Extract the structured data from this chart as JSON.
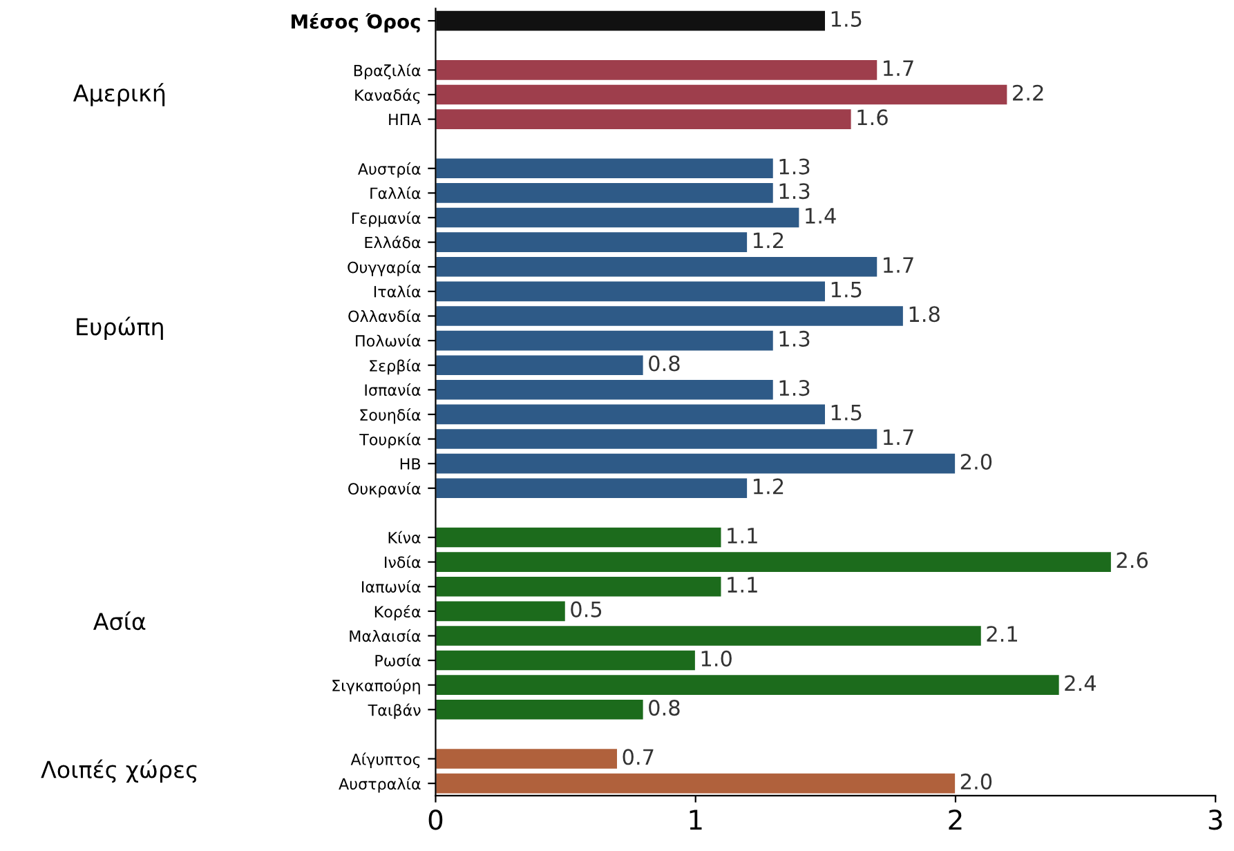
{
  "chart_data": {
    "type": "bar",
    "orientation": "horizontal",
    "categories": [
      "Μέσος Όρος",
      null,
      "Βραζιλία",
      "Καναδάς",
      "ΗΠΑ",
      null,
      "Αυστρία",
      "Γαλλία",
      "Γερμανία",
      "Ελλάδα",
      "Ουγγαρία",
      "Ιταλία",
      "Ολλανδία",
      "Πολωνία",
      "Σερβία",
      "Ισπανία",
      "Σουηδία",
      "Τουρκία",
      "ΗΒ",
      "Ουκρανία",
      null,
      "Κίνα",
      "Ινδία",
      "Ιαπωνία",
      "Κορέα",
      "Μαλαισία",
      "Ρωσία",
      "Σιγκαπούρη",
      "Ταιβάν",
      null,
      "Αίγυπτος",
      "Αυστραλία"
    ],
    "values": [
      1.5,
      null,
      1.7,
      2.2,
      1.6,
      null,
      1.3,
      1.3,
      1.4,
      1.2,
      1.7,
      1.5,
      1.8,
      1.3,
      0.8,
      1.3,
      1.5,
      1.7,
      2.0,
      1.2,
      null,
      1.1,
      2.6,
      1.1,
      0.5,
      2.1,
      1.0,
      2.4,
      0.8,
      null,
      0.7,
      2.0
    ],
    "value_labels": [
      "1.5",
      null,
      "1.7",
      "2.2",
      "1.6",
      null,
      "1.3",
      "1.3",
      "1.4",
      "1.2",
      "1.7",
      "1.5",
      "1.8",
      "1.3",
      "0.8",
      "1.3",
      "1.5",
      "1.7",
      "2.0",
      "1.2",
      null,
      "1.1",
      "2.6",
      "1.1",
      "0.5",
      "2.1",
      "1.0",
      "2.4",
      "0.8",
      null,
      "0.7",
      "2.0"
    ],
    "colors": [
      "#111111",
      null,
      "#9e3e4c",
      "#9e3e4c",
      "#9e3e4c",
      null,
      "#2e5a87",
      "#2e5a87",
      "#2e5a87",
      "#2e5a87",
      "#2e5a87",
      "#2e5a87",
      "#2e5a87",
      "#2e5a87",
      "#2e5a87",
      "#2e5a87",
      "#2e5a87",
      "#2e5a87",
      "#2e5a87",
      "#2e5a87",
      null,
      "#1c6b1c",
      "#1c6b1c",
      "#1c6b1c",
      "#1c6b1c",
      "#1c6b1c",
      "#1c6b1c",
      "#1c6b1c",
      "#1c6b1c",
      null,
      "#b0613c",
      "#b0613c"
    ],
    "xlim": [
      0,
      3
    ],
    "xticks": [
      0,
      1,
      2,
      3
    ],
    "grid": false,
    "legend": false,
    "annotations": [
      "Αμερική",
      "Ευρώπη",
      "Ασία",
      "Λοιπές χώρες"
    ]
  }
}
